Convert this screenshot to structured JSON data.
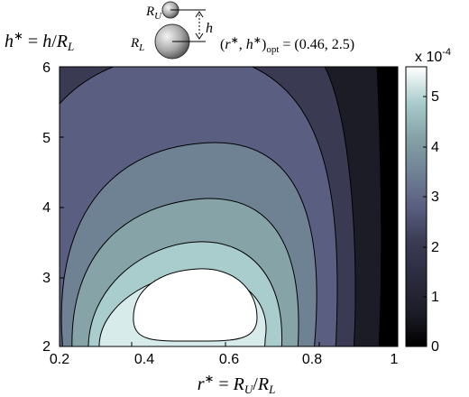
{
  "chart_data": {
    "type": "heatmap",
    "subtype": "filled-contour",
    "title": "",
    "xlabel": "r* = R_U / R_L",
    "ylabel": "h* = h / R_L",
    "xlim": [
      0.2,
      1.0
    ],
    "ylim": [
      2,
      6
    ],
    "x_ticks": [
      "0.2",
      "0.4",
      "0.6",
      "0.8",
      "1"
    ],
    "y_ticks": [
      "2",
      "3",
      "4",
      "5",
      "6"
    ],
    "grid": false,
    "colorbar": {
      "ticks": [
        "0",
        "1",
        "2",
        "3",
        "4",
        "5"
      ],
      "multiplier": "x 10",
      "exponent": "-4",
      "range": [
        0,
        5.6
      ],
      "colormap": "bone",
      "stops": [
        "#000000",
        "#1c1c26",
        "#3a3a52",
        "#5a5e80",
        "#6f8294",
        "#86a3a7",
        "#a9cccc",
        "#d7ebea",
        "#ffffff"
      ]
    },
    "optimum": {
      "label": "(r*, h*)_opt = (0.46, 2.5)",
      "r": 0.46,
      "h": 2.5
    },
    "contour_levels": [
      {
        "level": 0.6,
        "color": "#000000"
      },
      {
        "level": 1.3,
        "color": "#1c1c26"
      },
      {
        "level": 2.0,
        "color": "#3a3a52"
      },
      {
        "level": 2.7,
        "color": "#5a5e80"
      },
      {
        "level": 3.3,
        "color": "#6f8294"
      },
      {
        "level": 4.0,
        "color": "#86a3a7"
      },
      {
        "level": 4.7,
        "color": "#a9cccc"
      },
      {
        "level": 5.3,
        "color": "#d7ebea"
      }
    ]
  },
  "inset": {
    "upper_label": "R_U",
    "lower_label": "R_L",
    "gap_label": "h"
  }
}
